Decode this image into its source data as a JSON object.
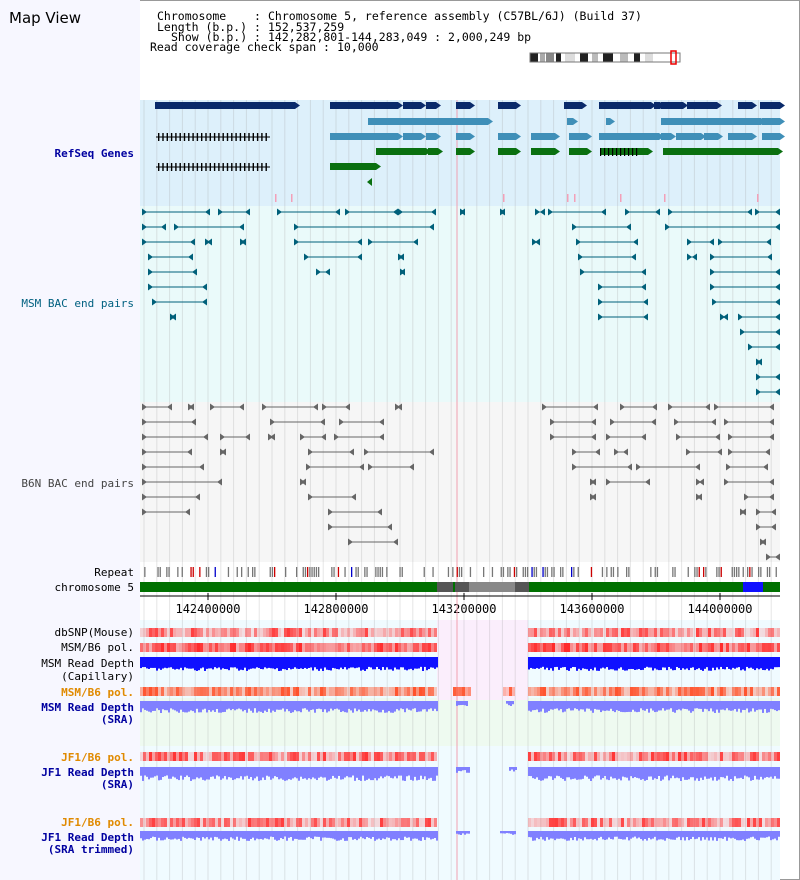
{
  "header": {
    "title": "Map View",
    "chromosome_label": "Chromosome",
    "chromosome_value": "Chromosome 5, reference assembly (C57BL/6J) (Build 37)",
    "length_label": "Length (b.p.)",
    "length_value": "152,537,259",
    "show_label": "Show (b.p.)",
    "show_value": "142,282,801-144,283,049 : 2,000,249 bp",
    "coverage_label": "Read coverage check span",
    "coverage_value": "10,000"
  },
  "tracks": {
    "refseq": "RefSeq Genes",
    "msm_bac": "MSM BAC end pairs",
    "b6n_bac": "B6N BAC end pairs",
    "repeat": "Repeat",
    "chromosome": "chromosome 5",
    "dbsnp": "dbSNP(Mouse)",
    "msm_b6_pol": "MSM/B6 pol.",
    "msm_read_depth": "MSM Read Depth",
    "capillary": "(Capillary)",
    "msm_b6_pol_sra": "MSM/B6 pol.",
    "msm_read_depth_sra": "MSM Read Depth",
    "sra": "(SRA)",
    "jf1_b6_pol": "JF1/B6 pol.",
    "jf1_read_depth": "JF1 Read Depth",
    "jf1_sra": "(SRA)",
    "jf1_b6_pol_2": "JF1/B6 pol.",
    "jf1_read_depth_2": "JF1 Read Depth",
    "sra_trimmed": "(SRA trimmed)"
  },
  "axis": {
    "ticks": [
      "142400000",
      "142800000",
      "143200000",
      "143600000",
      "144000000"
    ]
  },
  "colors": {
    "refseq_dark": "#0a2a6a",
    "refseq_mid": "#3f8fb8",
    "refseq_green": "#0a7010",
    "msm_bac": "#00607a",
    "b6n_bac": "#666666",
    "chrom_green": "#007000",
    "read_depth_blue": "#1010ff",
    "sra_blue": "#8080ff",
    "pol_red": "#ff3030"
  }
}
